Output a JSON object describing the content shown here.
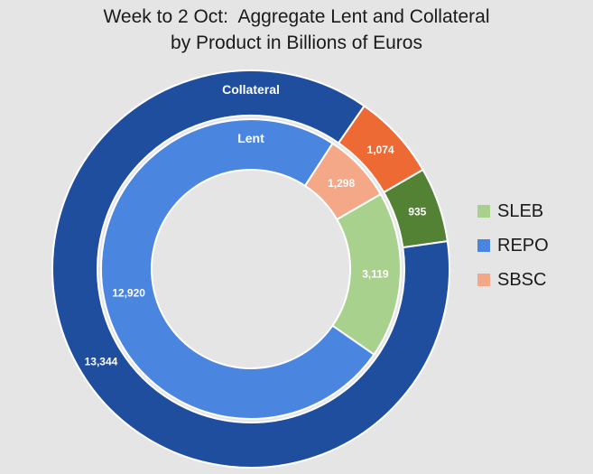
{
  "chart_data": {
    "type": "pie",
    "subtype": "nested-doughnut",
    "title": [
      "Week to 2 Oct:  Aggregate Lent and Collateral",
      "by Product in Billions of Euros"
    ],
    "legend_position": "right",
    "categories": [
      "SLEB",
      "REPO",
      "SBSC"
    ],
    "rings": [
      {
        "name": "Collateral",
        "label": "Collateral",
        "values": [
          935,
          13344,
          1074
        ],
        "value_labels": [
          "935",
          "13,344",
          "1,074"
        ],
        "colors": [
          "#548235",
          "#1f4e9e",
          "#ee6a35"
        ]
      },
      {
        "name": "Lent",
        "label": "Lent",
        "values": [
          3119,
          12920,
          1298
        ],
        "value_labels": [
          "3,119",
          "12,920",
          "1,298"
        ],
        "colors": [
          "#a9d18e",
          "#4a86e0",
          "#f4a888"
        ]
      }
    ]
  },
  "legend": [
    {
      "label": "SLEB",
      "color": "#a9d18e"
    },
    {
      "label": "REPO",
      "color": "#4a86e0"
    },
    {
      "label": "SBSC",
      "color": "#f4a888"
    }
  ]
}
